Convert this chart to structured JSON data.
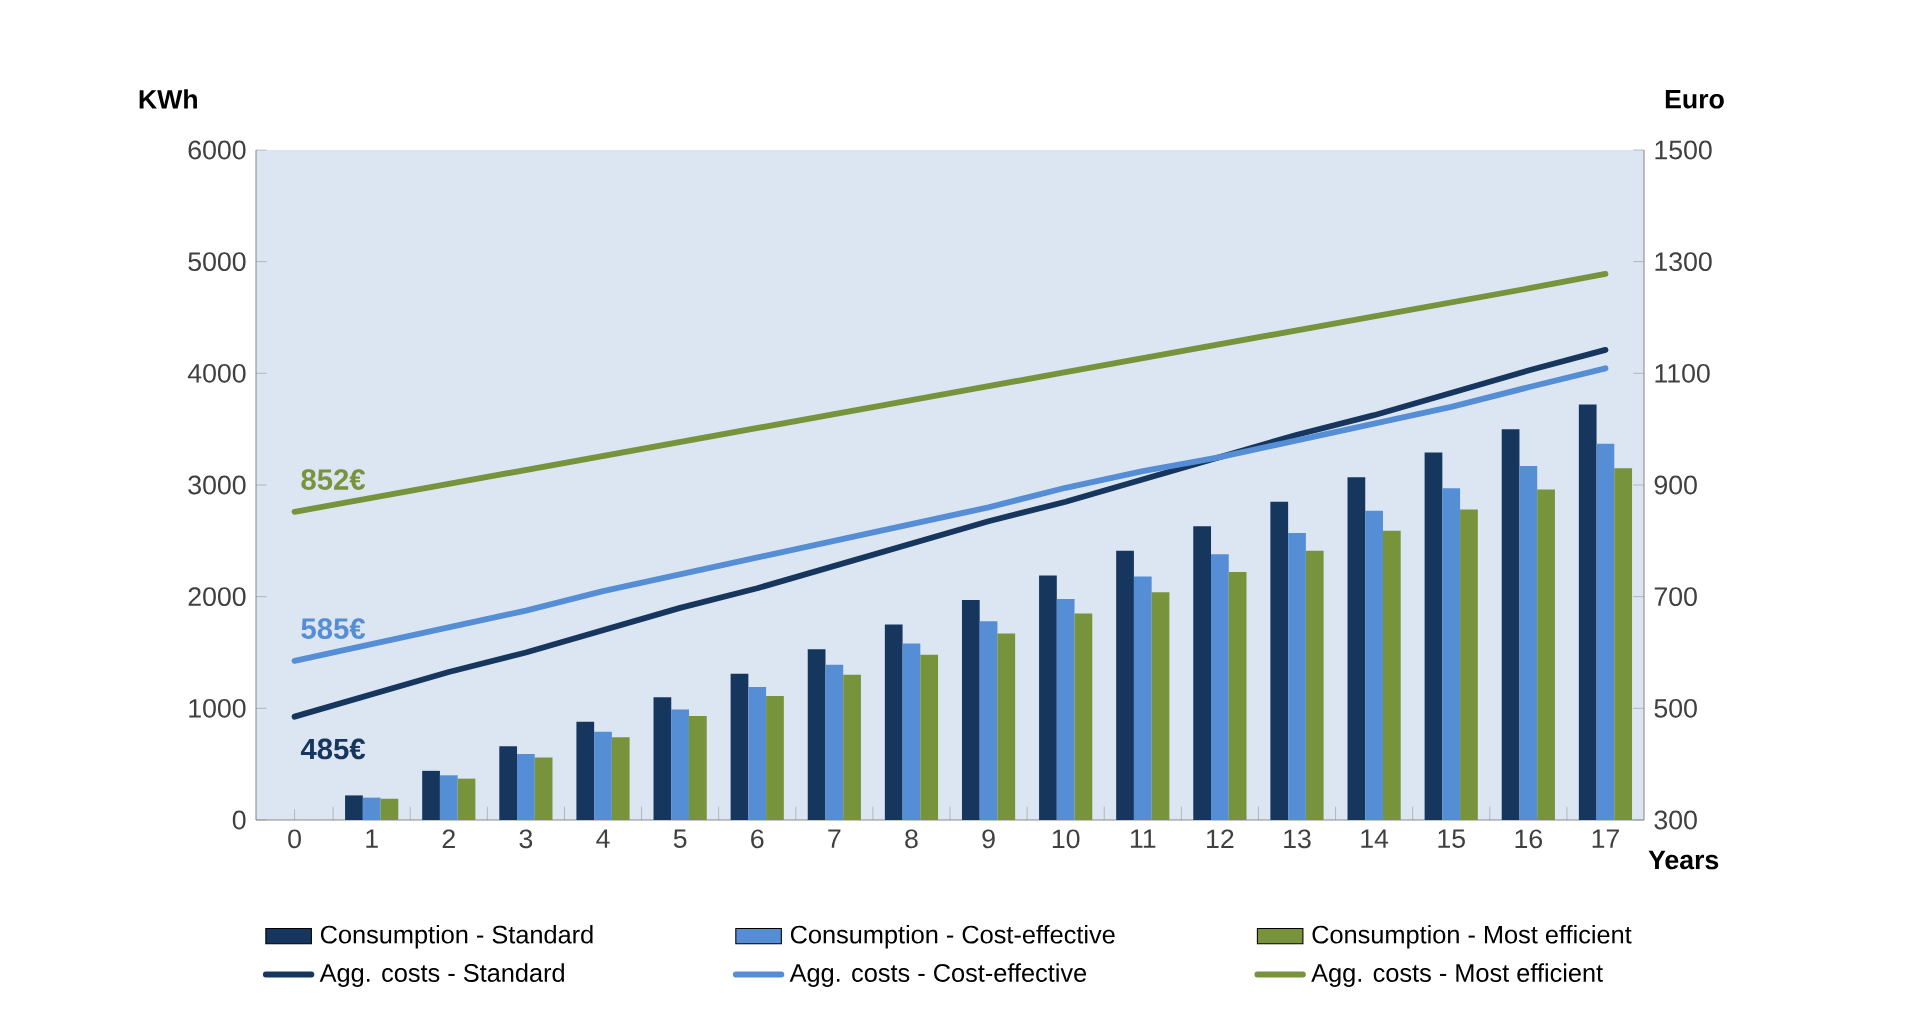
{
  "chart_data": {
    "type": "bar",
    "categories": [
      "0",
      "1",
      "2",
      "3",
      "4",
      "5",
      "6",
      "7",
      "8",
      "9",
      "10",
      "11",
      "12",
      "13",
      "14",
      "15",
      "16",
      "17"
    ],
    "xlabel": "Years",
    "ylabel": "KWh",
    "y2label": "Euro",
    "ylim": [
      0,
      6000
    ],
    "yticks": [
      0,
      1000,
      2000,
      3000,
      4000,
      5000,
      6000
    ],
    "y2lim": [
      300,
      1500
    ],
    "y2ticks": [
      300,
      500,
      700,
      900,
      1100,
      1300,
      1500
    ],
    "legend": "bottom",
    "series": [
      {
        "name": "Consumption - Standard",
        "color": "#17365d",
        "values": [
          null,
          220,
          440,
          660,
          880,
          1100,
          1310,
          1530,
          1750,
          1970,
          2190,
          2410,
          2630,
          2850,
          3070,
          3290,
          3500,
          3720
        ]
      },
      {
        "name": "Consumption - Cost-effective",
        "color": "#558ed5",
        "values": [
          null,
          200,
          400,
          590,
          790,
          990,
          1190,
          1390,
          1580,
          1780,
          1980,
          2180,
          2380,
          2570,
          2770,
          2970,
          3170,
          3370
        ]
      },
      {
        "name": "Consumption - Most efficient",
        "color": "#77933c",
        "values": [
          null,
          190,
          370,
          560,
          740,
          930,
          1110,
          1300,
          1480,
          1670,
          1850,
          2040,
          2220,
          2410,
          2590,
          2780,
          2960,
          3150
        ]
      },
      {
        "name": "Agg. costs - Standard",
        "color": "#17365d",
        "type": "line",
        "axis": "y2",
        "values": [
          485,
          525,
          565,
          600,
          640,
          680,
          715,
          755,
          795,
          835,
          870,
          910,
          950,
          990,
          1025,
          1065,
          1105,
          1142
        ]
      },
      {
        "name": "Agg. costs - Cost-effective",
        "color": "#558ed5",
        "type": "line",
        "axis": "y2",
        "values": [
          585,
          615,
          645,
          675,
          710,
          740,
          770,
          800,
          830,
          860,
          895,
          925,
          950,
          980,
          1010,
          1040,
          1075,
          1109
        ]
      },
      {
        "name": "Agg. costs - Most efficient",
        "color": "#77933c",
        "type": "line",
        "axis": "y2",
        "values": [
          852,
          877,
          902,
          927,
          952,
          977,
          1002,
          1027,
          1052,
          1077,
          1102,
          1127,
          1152,
          1177,
          1202,
          1227,
          1252,
          1278
        ]
      }
    ],
    "annotations": [
      "485€",
      "585€",
      "852€"
    ]
  }
}
